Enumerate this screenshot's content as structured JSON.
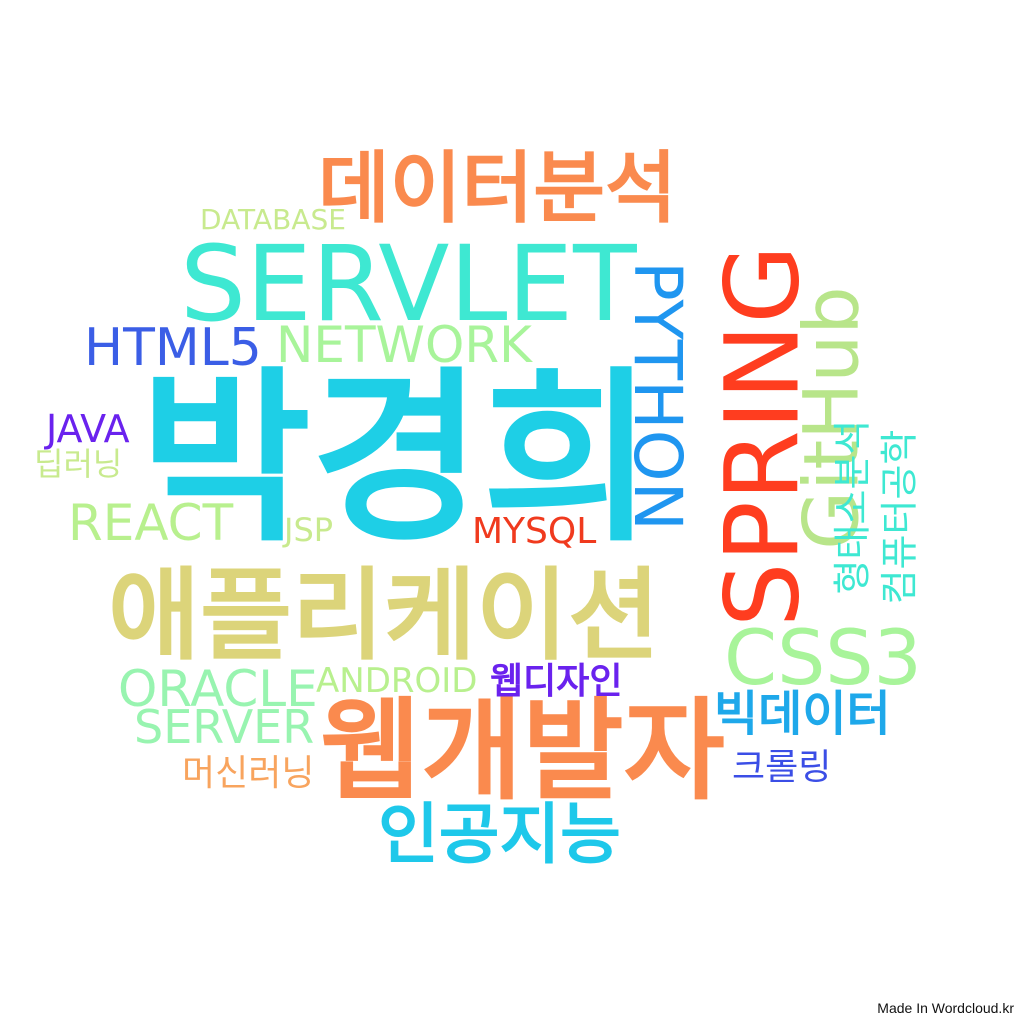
{
  "words": [
    {
      "text": "박경희",
      "color": "#1ecfe6"
    },
    {
      "text": "SERVLET",
      "color": "#3ee8d2"
    },
    {
      "text": "데이터분석",
      "color": "#fa8a4e"
    },
    {
      "text": "SPRING",
      "color": "#ff3d1f"
    },
    {
      "text": "PYTHON",
      "color": "#1f96f0"
    },
    {
      "text": "GitHub",
      "color": "#b8e58a"
    },
    {
      "text": "애플리케이션",
      "color": "#dcd47a"
    },
    {
      "text": "웹개발자",
      "color": "#fa8a4e"
    },
    {
      "text": "CSS3",
      "color": "#a8f49a"
    },
    {
      "text": "인공지능",
      "color": "#1ec8ea"
    },
    {
      "text": "HTML5",
      "color": "#3b5ee6"
    },
    {
      "text": "NETWORK",
      "color": "#a8f49a"
    },
    {
      "text": "DATABASE",
      "color": "#c8ea8e"
    },
    {
      "text": "JAVA",
      "color": "#6a22ee"
    },
    {
      "text": "딥러닝",
      "color": "#c8ea8e"
    },
    {
      "text": "REACT",
      "color": "#b8f08e"
    },
    {
      "text": "JSP",
      "color": "#c8ea8e"
    },
    {
      "text": "MYSQL",
      "color": "#f03a1e"
    },
    {
      "text": "ORACLE",
      "color": "#98f4b0"
    },
    {
      "text": "ANDROID",
      "color": "#b8f08e"
    },
    {
      "text": "웹디자인",
      "color": "#6a22ee"
    },
    {
      "text": "SERVER",
      "color": "#98f4b0"
    },
    {
      "text": "빅데이터",
      "color": "#1ea8ea"
    },
    {
      "text": "머신러닝",
      "color": "#f8a45e"
    },
    {
      "text": "크롤링",
      "color": "#3b4ee6"
    },
    {
      "text": "형태소분석",
      "color": "#3ee8d2"
    },
    {
      "text": "컴퓨터공학",
      "color": "#3ee8d2"
    }
  ],
  "footer": {
    "credit": "Made In Wordcloud.kr"
  }
}
